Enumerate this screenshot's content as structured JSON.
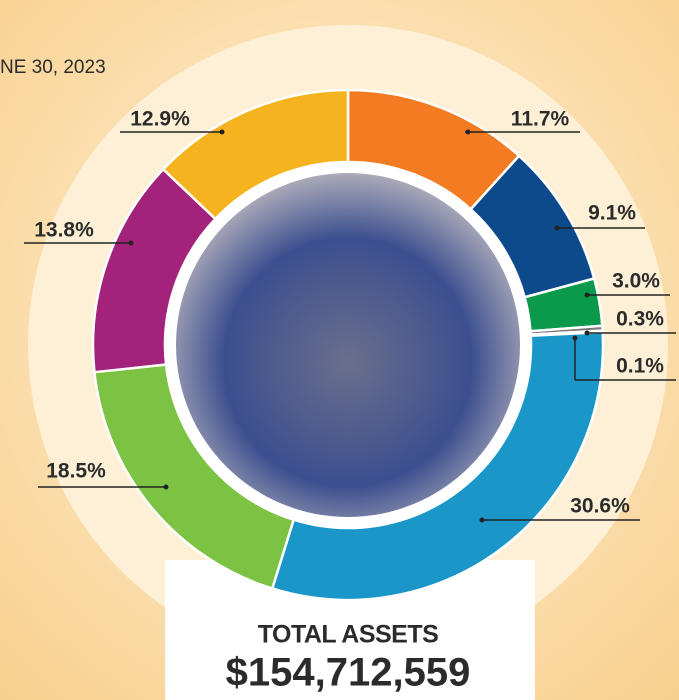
{
  "chart_data": {
    "type": "donut",
    "subtitle": "NE 30, 2023",
    "title": "TOTAL ASSETS",
    "total": "$154,712,559",
    "values": [
      11.7,
      9.1,
      3.0,
      0.3,
      0.1,
      30.6,
      18.5,
      13.8,
      12.9
    ],
    "value_labels": [
      "11.7%",
      "9.1%",
      "3.0%",
      "0.3%",
      "0.1%",
      "30.6%",
      "18.5%",
      "13.8%",
      "12.9%"
    ],
    "colors": [
      "#f37c22",
      "#0c4a8c",
      "#0b9a4b",
      "#7a7a7a",
      "#f2d230",
      "#1a97c8",
      "#7cc243",
      "#a3237b",
      "#f5b41f"
    ]
  }
}
